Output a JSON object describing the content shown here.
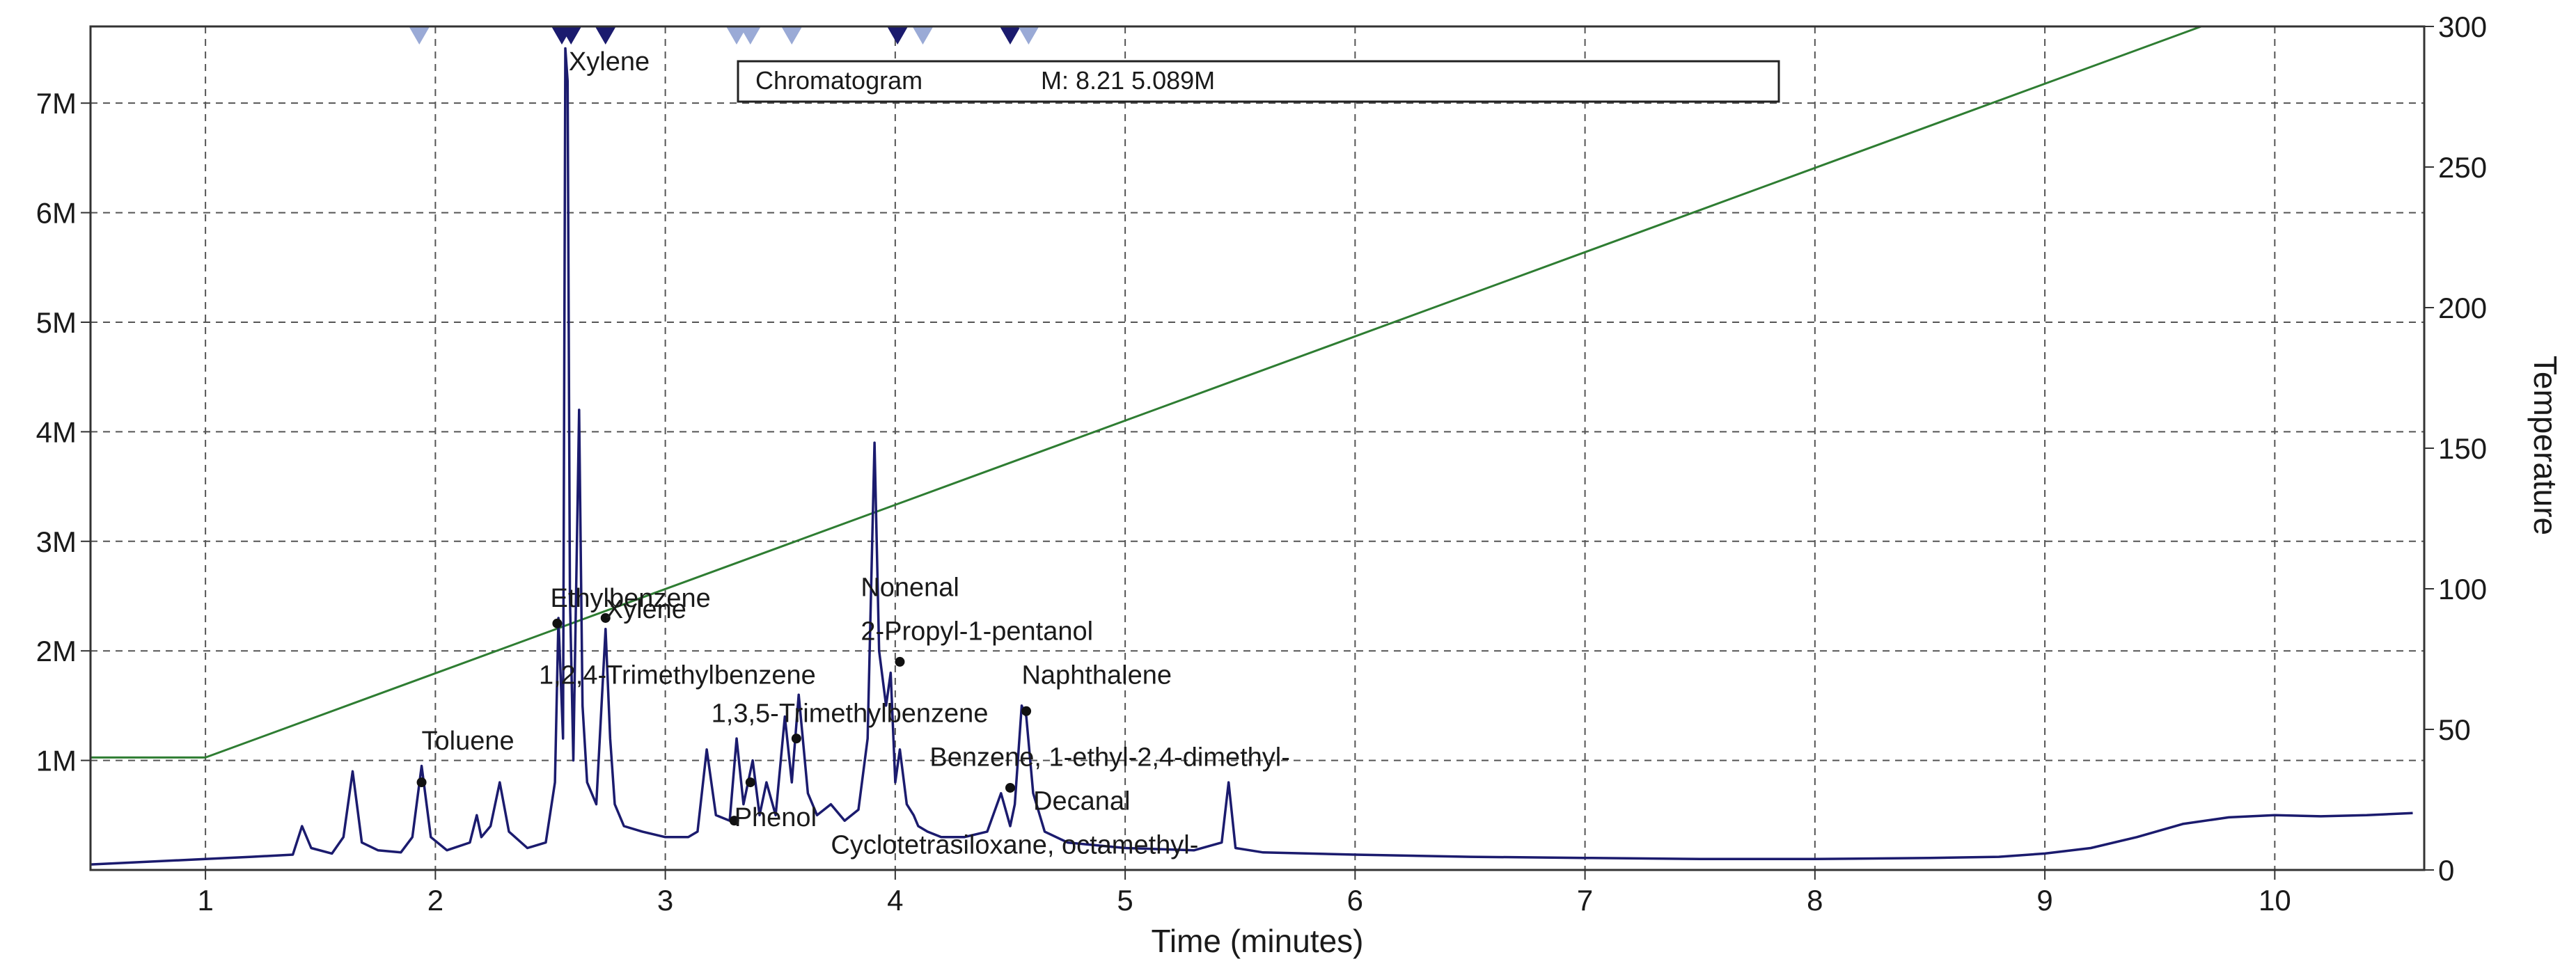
{
  "chart_data": {
    "type": "line",
    "title": "",
    "status_box": {
      "label": "Chromatogram",
      "readout": "M: 8.21  5.089M"
    },
    "xlabel": "Time (minutes)",
    "ylabel": "",
    "y2label": "Temperature",
    "xlim": [
      0.5,
      10.65
    ],
    "ylim": [
      0,
      7700000
    ],
    "y2lim": [
      0,
      300
    ],
    "grid": true,
    "x_ticks": [
      "1",
      "2",
      "3",
      "4",
      "5",
      "6",
      "7",
      "8",
      "9",
      "10"
    ],
    "y_ticks": [
      "1M",
      "2M",
      "3M",
      "4M",
      "5M",
      "6M",
      "7M"
    ],
    "y2_ticks": [
      "0",
      "50",
      "100",
      "150",
      "200",
      "250",
      "300"
    ],
    "colors": {
      "chromatogram": "#1b1b6e",
      "temperature": "#2e7d32",
      "marker_dark": "#1b1b6e",
      "marker_light": "#9aaad6",
      "grid": "#555555"
    },
    "series": [
      {
        "name": "",
        "kind": "chromatogram",
        "x": [
          0.5,
          0.8,
          1.0,
          1.2,
          1.38,
          1.42,
          1.46,
          1.55,
          1.6,
          1.64,
          1.68,
          1.75,
          1.85,
          1.9,
          1.94,
          1.98,
          2.05,
          2.15,
          2.18,
          2.2,
          2.24,
          2.28,
          2.32,
          2.4,
          2.48,
          2.52,
          2.535,
          2.555,
          2.565,
          2.575,
          2.585,
          2.6,
          2.625,
          2.64,
          2.66,
          2.7,
          2.74,
          2.76,
          2.78,
          2.82,
          2.9,
          3.0,
          3.1,
          3.14,
          3.18,
          3.22,
          3.28,
          3.31,
          3.34,
          3.38,
          3.41,
          3.44,
          3.48,
          3.52,
          3.55,
          3.58,
          3.62,
          3.66,
          3.72,
          3.78,
          3.84,
          3.88,
          3.91,
          3.93,
          3.96,
          3.98,
          4.0,
          4.02,
          4.05,
          4.08,
          4.1,
          4.14,
          4.2,
          4.3,
          4.4,
          4.46,
          4.5,
          4.52,
          4.55,
          4.57,
          4.6,
          4.65,
          4.75,
          5.0,
          5.3,
          5.42,
          5.45,
          5.48,
          5.6,
          6.0,
          6.5,
          7.0,
          7.5,
          8.0,
          8.5,
          8.8,
          9.0,
          9.2,
          9.4,
          9.6,
          9.8,
          10.0,
          10.2,
          10.4,
          10.6
        ],
        "values": [
          0.05,
          0.08,
          0.1,
          0.12,
          0.14,
          0.4,
          0.2,
          0.15,
          0.3,
          0.9,
          0.25,
          0.18,
          0.16,
          0.3,
          0.95,
          0.3,
          0.18,
          0.25,
          0.5,
          0.3,
          0.4,
          0.8,
          0.35,
          0.2,
          0.25,
          0.8,
          2.3,
          1.2,
          7.5,
          7.2,
          2.5,
          1.0,
          4.2,
          1.5,
          0.8,
          0.6,
          2.2,
          1.2,
          0.6,
          0.4,
          0.35,
          0.3,
          0.3,
          0.35,
          1.1,
          0.5,
          0.45,
          1.2,
          0.6,
          1.0,
          0.5,
          0.8,
          0.5,
          1.4,
          0.8,
          1.6,
          0.7,
          0.5,
          0.6,
          0.45,
          0.55,
          1.2,
          3.9,
          2.0,
          1.5,
          1.8,
          0.8,
          1.1,
          0.6,
          0.5,
          0.4,
          0.35,
          0.3,
          0.3,
          0.35,
          0.7,
          0.4,
          0.6,
          1.5,
          1.4,
          0.7,
          0.35,
          0.25,
          0.2,
          0.18,
          0.25,
          0.8,
          0.2,
          0.16,
          0.14,
          0.12,
          0.11,
          0.1,
          0.1,
          0.11,
          0.12,
          0.15,
          0.2,
          0.3,
          0.42,
          0.48,
          0.5,
          0.49,
          0.5,
          0.52
        ],
        "unit": "M"
      },
      {
        "name": "",
        "kind": "temperature",
        "axis": "y2",
        "x": [
          0.5,
          1.0,
          9.68
        ],
        "values": [
          40,
          40,
          300
        ]
      }
    ],
    "peak_labels": [
      {
        "text": "Xylene",
        "x": 2.58,
        "y": 7.3
      },
      {
        "text": "Ethylbenzene",
        "x": 2.5,
        "y": 2.4
      },
      {
        "text": "Xylene",
        "x": 2.74,
        "y": 2.3
      },
      {
        "text": "1,2,4-Trimethylbenzene",
        "x": 2.45,
        "y": 1.7
      },
      {
        "text": "Toluene",
        "x": 1.94,
        "y": 1.1
      },
      {
        "text": "1,3,5-Trimethylbenzene",
        "x": 3.2,
        "y": 1.35
      },
      {
        "text": "Nonenal",
        "x": 3.85,
        "y": 2.5
      },
      {
        "text": "2-Propyl-1-pentanol",
        "x": 3.85,
        "y": 2.1
      },
      {
        "text": "Naphthalene",
        "x": 4.55,
        "y": 1.7
      },
      {
        "text": "Benzene, 1-ethyl-2,4-dimethyl-",
        "x": 4.15,
        "y": 0.95
      },
      {
        "text": "Decanal",
        "x": 4.6,
        "y": 0.55
      },
      {
        "text": "Phenol",
        "x": 3.3,
        "y": 0.4
      },
      {
        "text": "Cyclotetrasiloxane, octamethyl-",
        "x": 3.72,
        "y": 0.15
      }
    ],
    "peak_markers": [
      {
        "x": 1.94,
        "y": 0.8
      },
      {
        "x": 2.53,
        "y": 2.25
      },
      {
        "x": 2.74,
        "y": 2.3
      },
      {
        "x": 3.3,
        "y": 0.45
      },
      {
        "x": 3.37,
        "y": 0.8
      },
      {
        "x": 3.57,
        "y": 1.2
      },
      {
        "x": 4.02,
        "y": 1.9
      },
      {
        "x": 4.5,
        "y": 0.75
      },
      {
        "x": 4.57,
        "y": 1.45
      }
    ],
    "top_markers": [
      {
        "x": 1.93,
        "shade": "light"
      },
      {
        "x": 2.55,
        "shade": "dark"
      },
      {
        "x": 2.59,
        "shade": "dark"
      },
      {
        "x": 2.74,
        "shade": "dark"
      },
      {
        "x": 3.31,
        "shade": "light"
      },
      {
        "x": 3.37,
        "shade": "light"
      },
      {
        "x": 3.55,
        "shade": "light"
      },
      {
        "x": 4.01,
        "shade": "dark"
      },
      {
        "x": 4.12,
        "shade": "light"
      },
      {
        "x": 4.5,
        "shade": "dark"
      },
      {
        "x": 4.58,
        "shade": "light"
      }
    ]
  }
}
